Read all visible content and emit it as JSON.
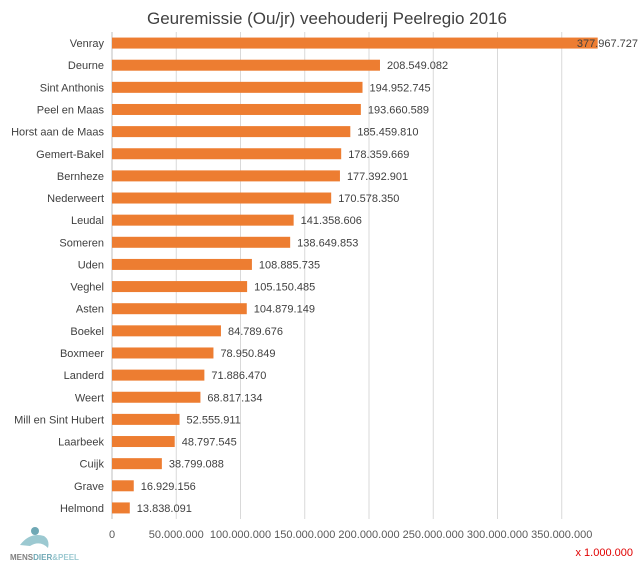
{
  "chart_data": {
    "type": "bar",
    "orientation": "horizontal",
    "title": "Geuremissie (Ou/jr) veehouderij Peelregio 2016",
    "categories": [
      "Venray",
      "Deurne",
      "Sint Anthonis",
      "Peel en Maas",
      "Horst aan de Maas",
      "Gemert-Bakel",
      "Bernheze",
      "Nederweert",
      "Leudal",
      "Someren",
      "Uden",
      "Veghel",
      "Asten",
      "Boekel",
      "Boxmeer",
      "Landerd",
      "Weert",
      "Mill en Sint Hubert",
      "Laarbeek",
      "Cuijk",
      "Grave",
      "Helmond"
    ],
    "values": [
      377967727,
      208549082,
      194952745,
      193660589,
      185459810,
      178359669,
      177392901,
      170578350,
      141358606,
      138649853,
      108885735,
      105150485,
      104879149,
      84789676,
      78950849,
      71886470,
      68817134,
      52555911,
      48797545,
      38799088,
      16929156,
      13838091
    ],
    "data_labels": [
      "377.967.727",
      "208.549.082",
      "194.952.745",
      "193.660.589",
      "185.459.810",
      "178.359.669",
      "177.392.901",
      "170.578.350",
      "141.358.606",
      "138.649.853",
      "108.885.735",
      "105.150.485",
      "104.879.149",
      "84.789.676",
      "78.950.849",
      "71.886.470",
      "68.817.134",
      "52.555.911",
      "48.797.545",
      "38.799.088",
      "16.929.156",
      "13.838.091"
    ],
    "x_ticks": [
      "0",
      "50.000.000",
      "100.000.000",
      "150.000.000",
      "200.000.000",
      "250.000.000",
      "300.000.000",
      "350.000.000"
    ],
    "x_tick_values": [
      0,
      50000000,
      100000000,
      150000000,
      200000000,
      250000000,
      300000000,
      350000000
    ],
    "xlim": [
      0,
      400000000
    ],
    "unit_note": "x 1.000.000",
    "grid": true,
    "bar_color": "#ED7D31",
    "unit_note_color": "#E00000"
  },
  "logo": {
    "text_mens": "MENS",
    "text_dier": "DIER",
    "text_peel": "PEEL",
    "colors": [
      "#6fa8b5",
      "#9cc9d1"
    ]
  }
}
